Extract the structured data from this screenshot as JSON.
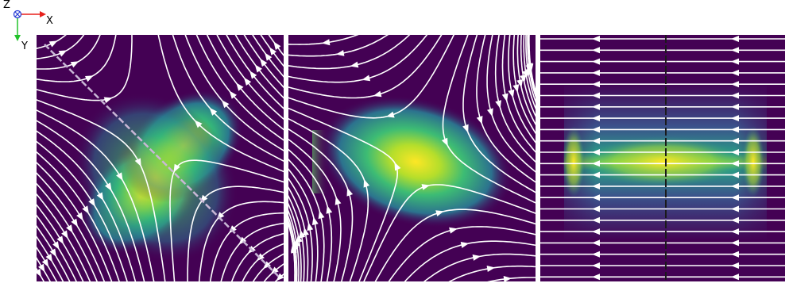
{
  "axes_legend": {
    "z_label": "Z",
    "x_label": "X",
    "y_label": "Y",
    "x_color": "#e8211c",
    "y_color": "#22c22a",
    "z_color": "#2a3fd6"
  },
  "panels": [
    {
      "name": "panel-1",
      "pattern": "diagonal-saddle-with-wall"
    },
    {
      "name": "panel-2",
      "pattern": "rotated-saddle"
    },
    {
      "name": "panel-3",
      "pattern": "horizontal-stripes"
    }
  ],
  "colormap": [
    "#440154",
    "#3b528b",
    "#21918c",
    "#5ec962",
    "#fde725"
  ]
}
